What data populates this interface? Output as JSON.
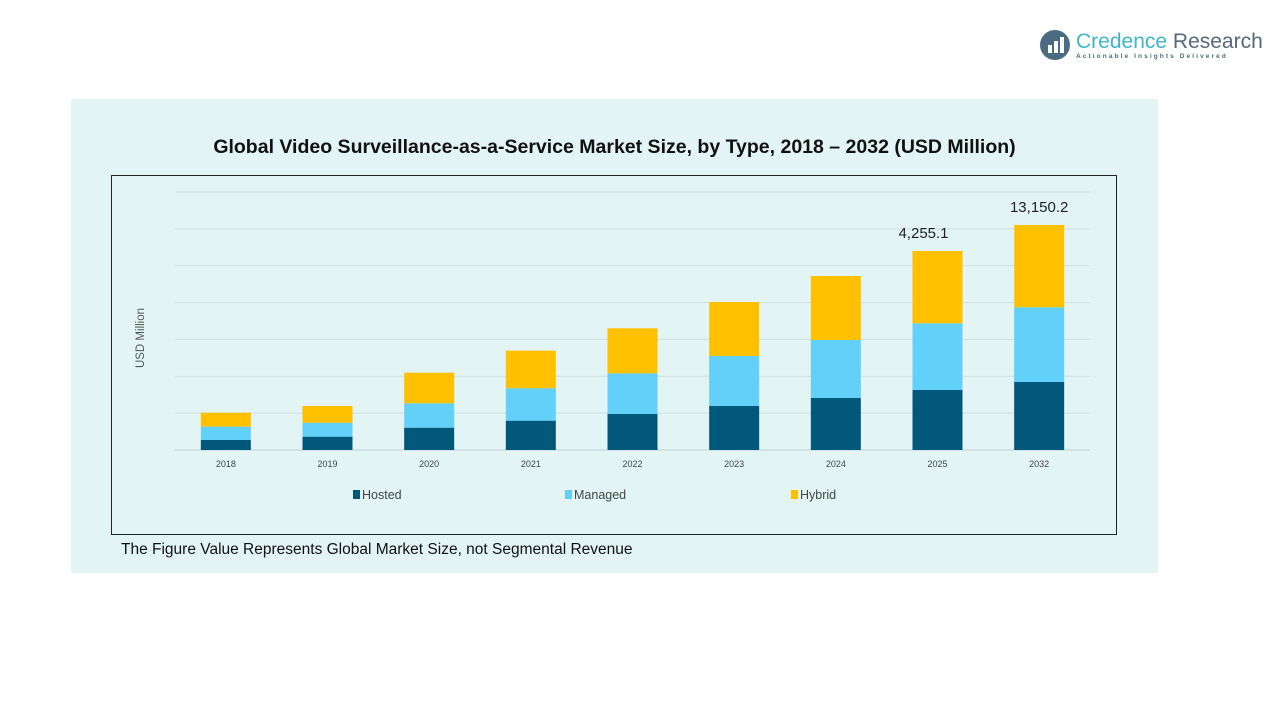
{
  "logo": {
    "name_a": "Credence",
    "name_b": "Research",
    "tagline": "Actionable Insights Delivered"
  },
  "footnote": "The Figure Value Represents Global Market Size, not Segmental Revenue",
  "chart_data": {
    "type": "bar",
    "stacked": true,
    "title": "Global Video Surveillance-as-a-Service  Market Size, by Type, 2018 – 2032 (USD Million)",
    "xlabel": "",
    "ylabel": "USD Million",
    "ylim": [
      0,
      5516
    ],
    "grid": true,
    "legend_position": "bottom",
    "categories": [
      "2018",
      "2019",
      "2020",
      "2021",
      "2022",
      "2023",
      "2024",
      "2025",
      "2032"
    ],
    "series": [
      {
        "name": "Hosted",
        "color": "#02587a",
        "values": [
          214,
          285,
          477,
          627,
          770,
          941,
          1112,
          1283,
          1454
        ]
      },
      {
        "name": "Managed",
        "color": "#62d0f8",
        "values": [
          285,
          299,
          522,
          693,
          870,
          1069,
          1240,
          1426,
          1597
        ]
      },
      {
        "name": "Hybrid",
        "color": "#ffc000",
        "values": [
          299,
          357,
          654,
          804,
          962,
          1155,
          1368,
          1546,
          1760
        ]
      }
    ],
    "data_labels": [
      {
        "category": "2025",
        "text": "4,255.1"
      },
      {
        "category": "2032",
        "text": "13,150.2"
      }
    ]
  }
}
